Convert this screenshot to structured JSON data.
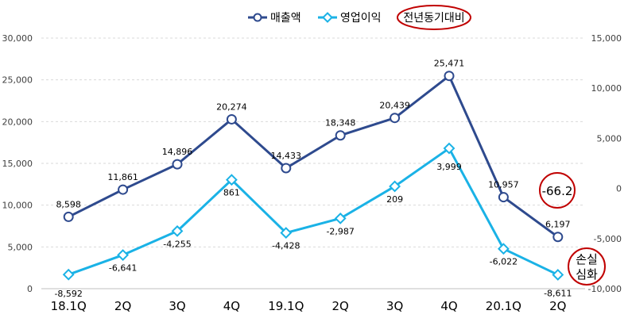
{
  "legend": {
    "note": "전년동기대비"
  },
  "annotations": {
    "change": "-66.2",
    "loss_line1": "손실",
    "loss_line2": "심화"
  },
  "colors": {
    "revenue": "#2E4A8E",
    "op_profit": "#1AB2E6",
    "annotation_circle": "#C00000",
    "grid": "#D9D9D9"
  },
  "chart_data": {
    "type": "line",
    "categories": [
      "18.1Q",
      "2Q",
      "3Q",
      "4Q",
      "19.1Q",
      "2Q",
      "3Q",
      "4Q",
      "20.1Q",
      "2Q"
    ],
    "series": [
      {
        "name": "매출액",
        "axis": "left",
        "marker": "circle",
        "values": [
          8598,
          11861,
          14896,
          20274,
          14433,
          18348,
          20439,
          25471,
          10957,
          6197
        ],
        "labels": [
          "8,598",
          "11,861",
          "14,896",
          "20,274",
          "14,433",
          "18,348",
          "20,439",
          "25,471",
          "10,957",
          "6,197"
        ]
      },
      {
        "name": "영업이익",
        "axis": "right",
        "marker": "diamond",
        "values": [
          -8592,
          -6641,
          -4255,
          861,
          -4428,
          -2987,
          209,
          3999,
          -6022,
          -8611
        ],
        "labels": [
          "-8,592",
          "-6,641",
          "-4,255",
          "861",
          "-4,428",
          "-2,987",
          "209",
          "3,999",
          "-6,022",
          "-8,611"
        ]
      }
    ],
    "y_left": {
      "range": [
        0,
        30000
      ],
      "ticks": [
        0,
        5000,
        10000,
        15000,
        20000,
        25000,
        30000
      ],
      "tick_labels": [
        "0",
        "5,000",
        "10,000",
        "15,000",
        "20,000",
        "25,000",
        "30,000"
      ]
    },
    "y_right": {
      "range": [
        -10000,
        15000
      ],
      "ticks": [
        -10000,
        -5000,
        0,
        5000,
        10000,
        15000
      ],
      "tick_labels": [
        "-10,000",
        "-5,000",
        "0",
        "5,000",
        "10,000",
        "15,000"
      ]
    },
    "grid": true,
    "legend_position": "top-center"
  }
}
